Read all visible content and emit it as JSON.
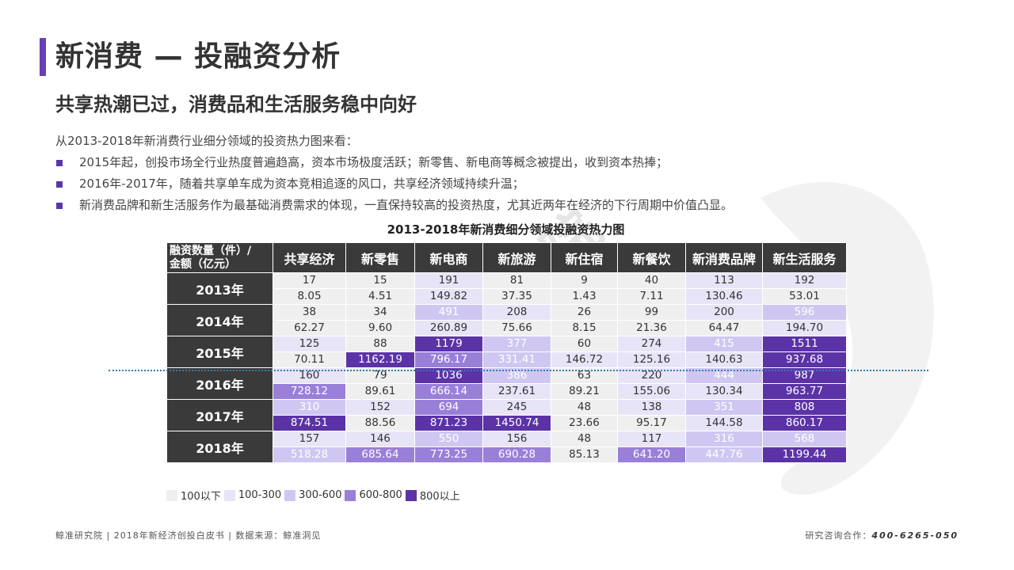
{
  "header": {
    "title": "新消费 — 投融资分析",
    "subtitle": "共享热潮已过，消费品和生活服务稳中向好"
  },
  "intro": "从2013-2018年新消费行业细分领域的投资热力图来看：",
  "bullets": [
    "2015年起，创投市场全行业热度普遍趋高，资本市场极度活跃；新零售、新电商等概念被提出，收到资本热捧；",
    "2016年-2017年，随着共享单车成为资本竞相追逐的风口，共享经济领域持续升温；",
    "新消费品牌和新生活服务作为最基础消费需求的体现，一直保持较高的投资热度，尤其近两年在经济的下行周期中价值凸显。"
  ],
  "heatmap": {
    "title": "2013-2018年新消费细分领域投融资热力图",
    "corner_line1": "融资数量（件）/",
    "corner_line2": "金额（亿元）",
    "columns": [
      "共享经济",
      "新零售",
      "新电商",
      "新旅游",
      "新住宿",
      "新餐饮",
      "新消费品牌",
      "新生活服务"
    ],
    "rows": [
      {
        "year": "2013年",
        "counts": [
          "17",
          "15",
          "191",
          "81",
          "9",
          "40",
          "113",
          "192"
        ],
        "amounts": [
          "8.05",
          "4.51",
          "149.82",
          "37.35",
          "1.43",
          "7.11",
          "130.46",
          "53.01"
        ]
      },
      {
        "year": "2014年",
        "counts": [
          "38",
          "34",
          "491",
          "208",
          "26",
          "99",
          "200",
          "596"
        ],
        "amounts": [
          "62.27",
          "9.60",
          "260.89",
          "75.66",
          "8.15",
          "21.36",
          "64.47",
          "194.70"
        ]
      },
      {
        "year": "2015年",
        "counts": [
          "125",
          "88",
          "1179",
          "377",
          "60",
          "274",
          "415",
          "1511"
        ],
        "amounts": [
          "70.11",
          "1162.19",
          "796.17",
          "331.41",
          "146.72",
          "125.16",
          "140.63",
          "937.68"
        ]
      },
      {
        "year": "2016年",
        "counts": [
          "160",
          "79",
          "1036",
          "386",
          "63",
          "220",
          "444",
          "987"
        ],
        "amounts": [
          "728.12",
          "89.61",
          "666.14",
          "237.61",
          "89.21",
          "155.06",
          "130.34",
          "963.77"
        ]
      },
      {
        "year": "2017年",
        "counts": [
          "310",
          "152",
          "694",
          "245",
          "48",
          "138",
          "351",
          "808"
        ],
        "amounts": [
          "874.51",
          "88.56",
          "871.23",
          "1450.74",
          "23.66",
          "95.17",
          "144.58",
          "860.17"
        ]
      },
      {
        "year": "2018年",
        "counts": [
          "157",
          "146",
          "550",
          "156",
          "48",
          "117",
          "316",
          "568"
        ],
        "amounts": [
          "518.28",
          "685.64",
          "773.25",
          "690.28",
          "85.13",
          "641.20",
          "447.76",
          "1199.44"
        ]
      }
    ],
    "legend": [
      "100以下",
      "100-300",
      "300-600",
      "600-800",
      "800以上"
    ],
    "colors": [
      "#efefef",
      "#e8e4f8",
      "#cfc7f2",
      "#9a7fd9",
      "#5b33a6"
    ]
  },
  "footer": {
    "left": "鲸准研究院 | 2018年新经济创投白皮书 | 数据来源：鲸准洞见",
    "right_label": "研究咨询合作：",
    "phone": "400-6265-050"
  },
  "watermark_text": "鲸准研究院"
}
